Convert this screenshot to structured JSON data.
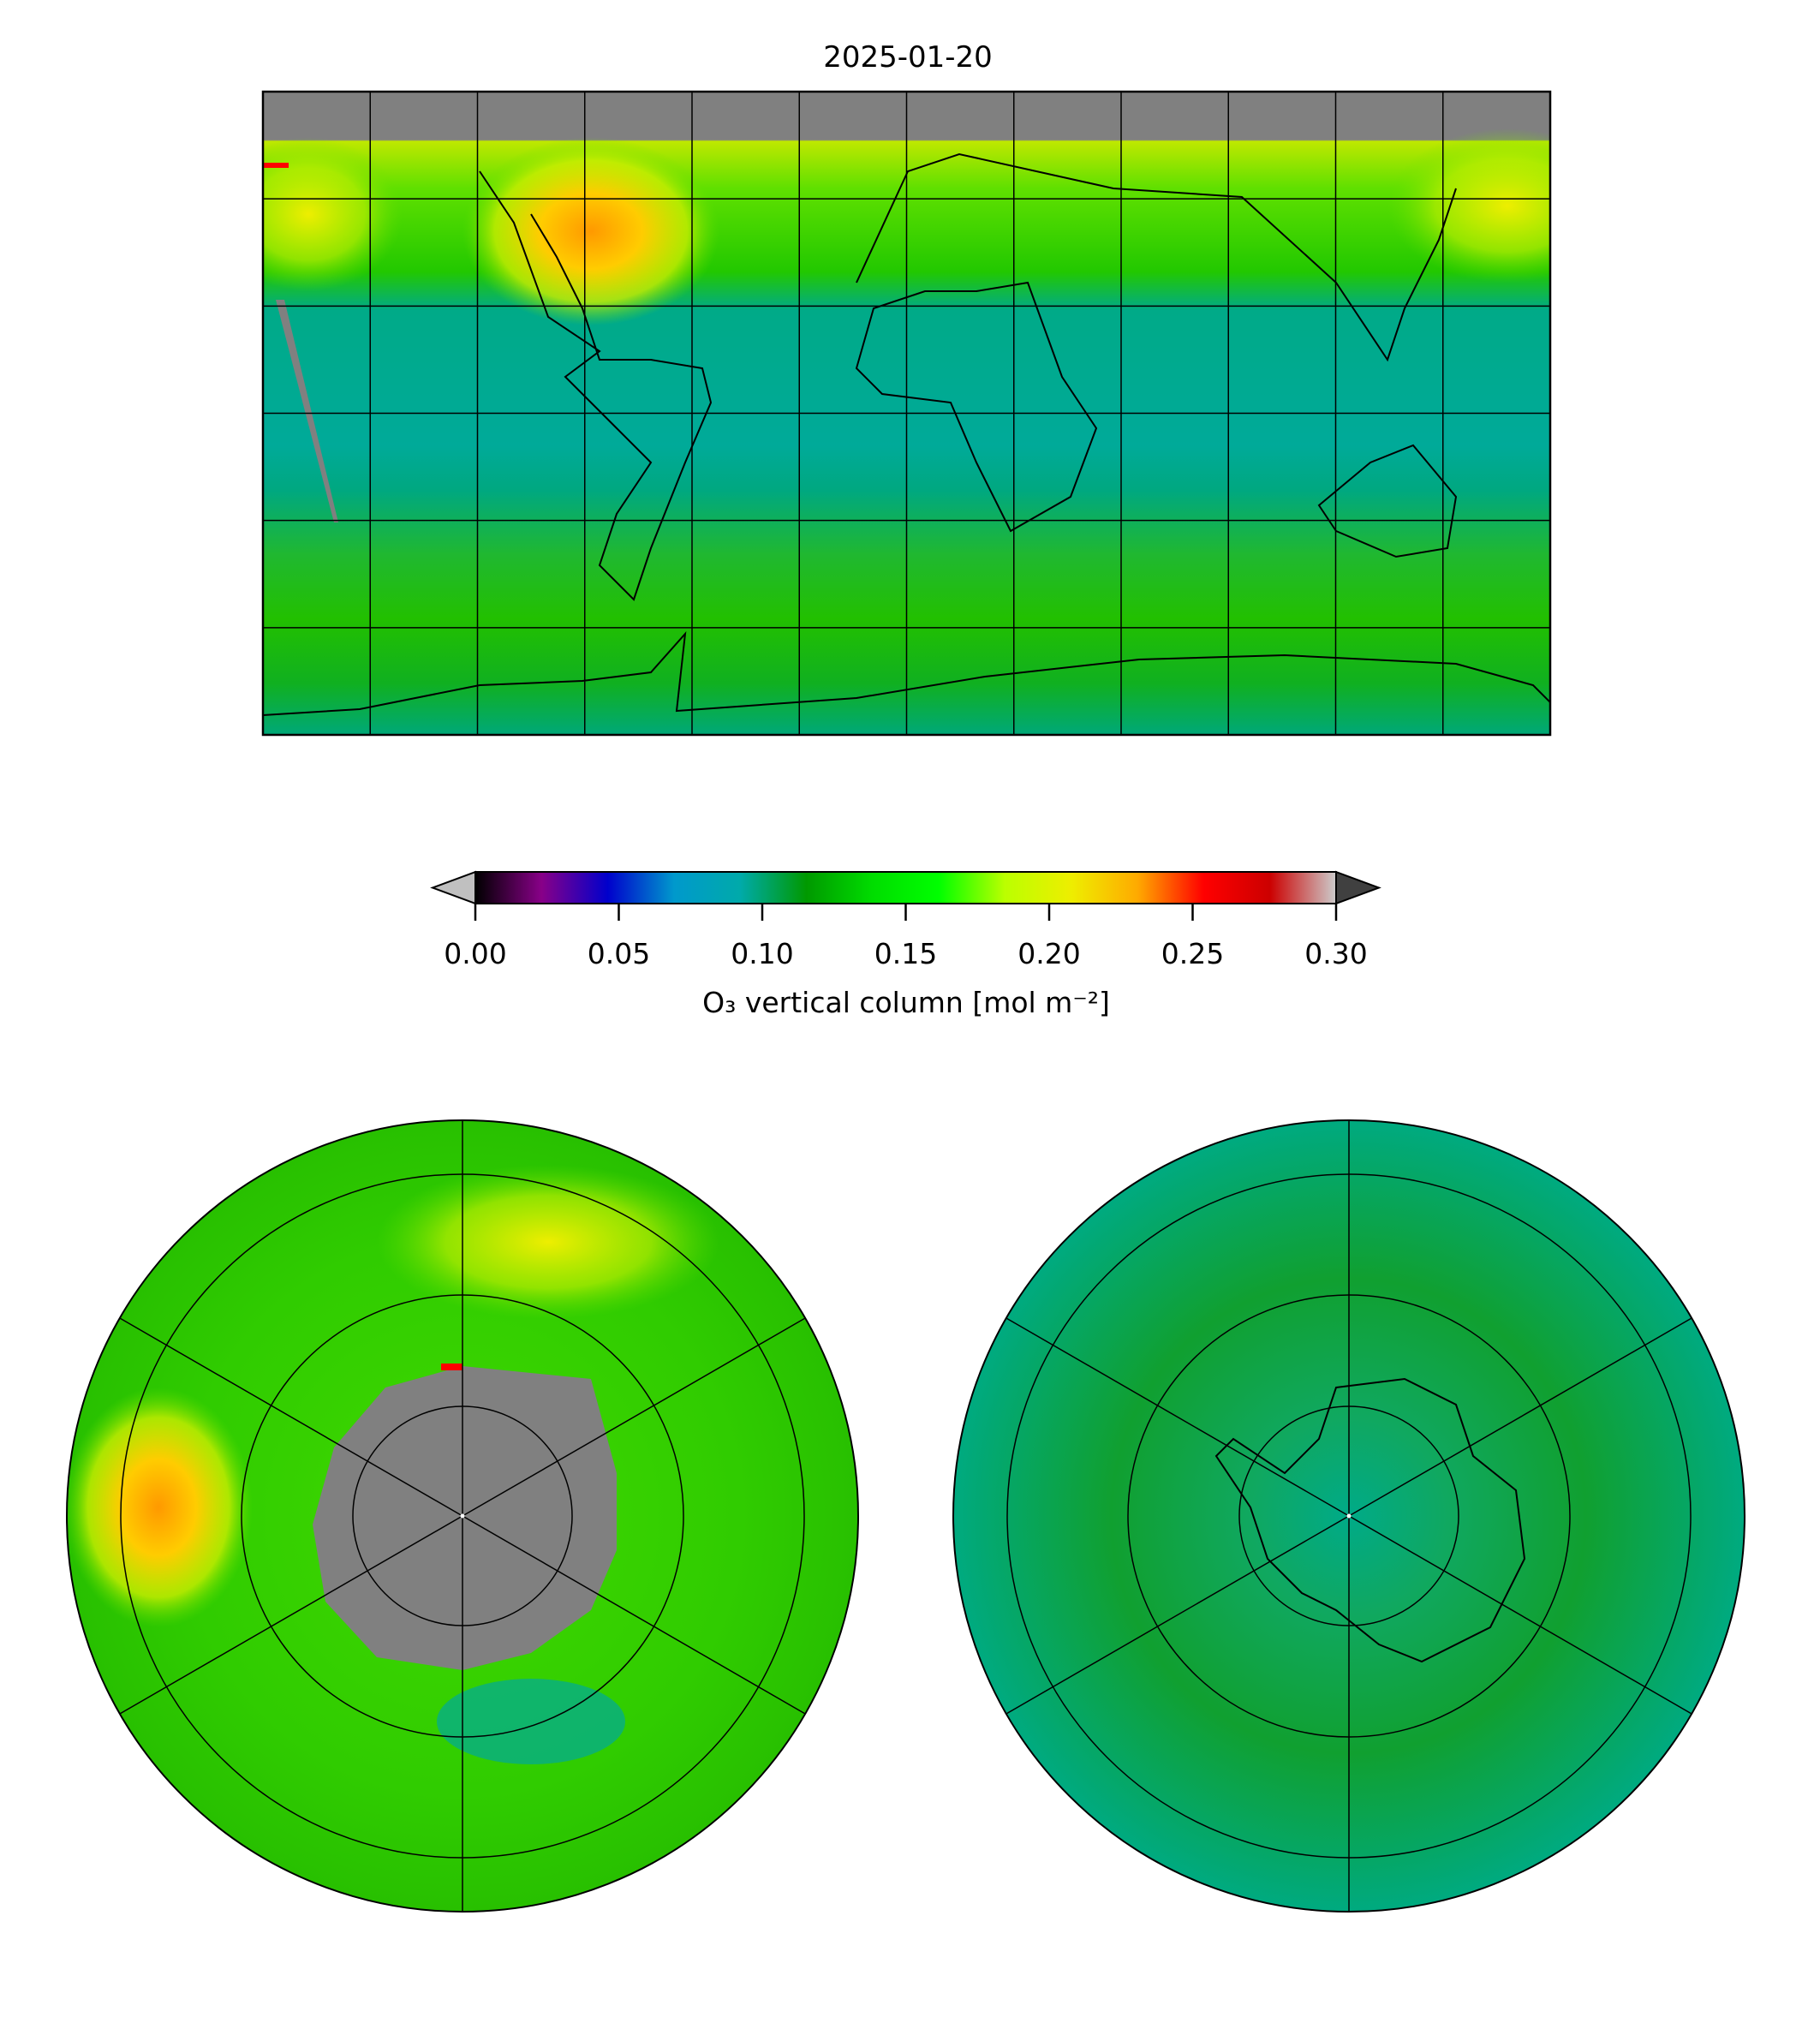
{
  "chart_data": {
    "type": "heatmap",
    "title": "2025-01-20",
    "panels": [
      "global-equirectangular",
      "north-polar-stereographic",
      "south-polar-stereographic"
    ],
    "colorbar": {
      "label": "O₃ vertical column [mol m⁻²]",
      "vmin": 0.0,
      "vmax": 0.3,
      "extend": "both",
      "ticks": [
        0.0,
        0.05,
        0.1,
        0.15,
        0.2,
        0.25,
        0.3
      ],
      "tick_labels": [
        "0.00",
        "0.05",
        "0.10",
        "0.15",
        "0.20",
        "0.25",
        "0.30"
      ],
      "colors": [
        "#000000",
        "#880088",
        "#0000cc",
        "#0099cc",
        "#00aaaa",
        "#009900",
        "#00dd00",
        "#00ff00",
        "#bbff00",
        "#eeee00",
        "#ffaa00",
        "#ff0000",
        "#cc0000",
        "#cccccc"
      ],
      "under_color": "#c0c0c0",
      "over_color": "#404040"
    },
    "graticule": {
      "lon_step_deg": 30,
      "lat_step_deg": 30
    },
    "missing_color": "#808080",
    "summary_values": {
      "tropics_typical": 0.11,
      "midlatitude_typical": 0.15,
      "north_america_max": 0.24,
      "antarctic_typical": 0.13
    }
  }
}
